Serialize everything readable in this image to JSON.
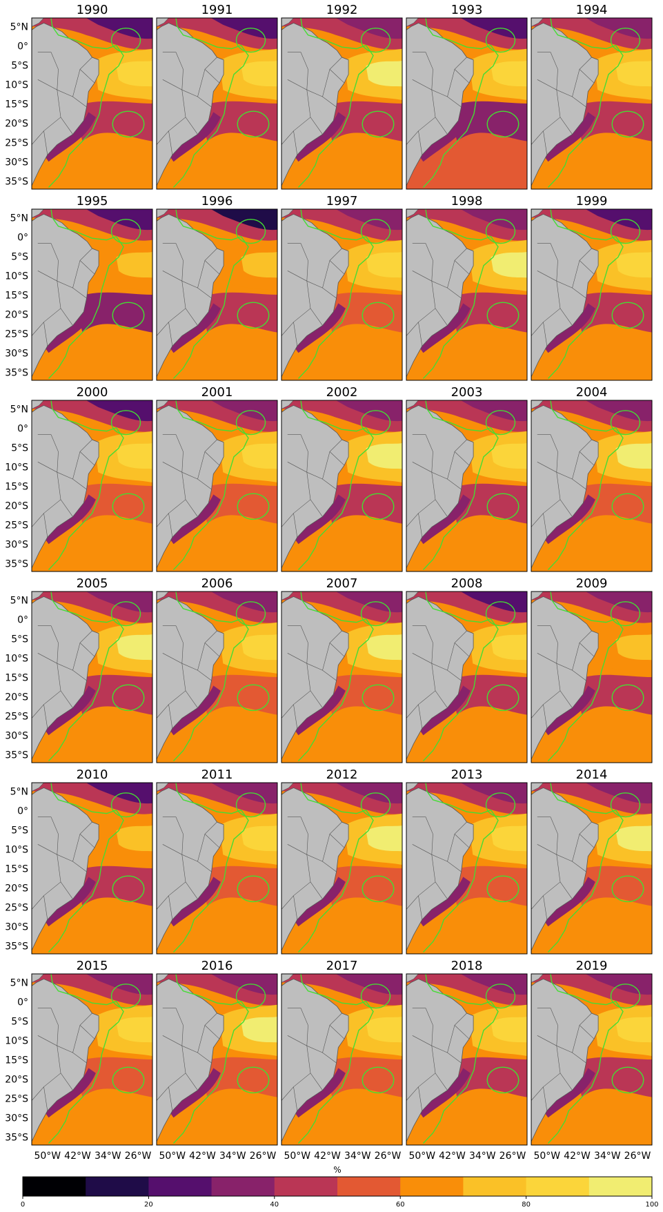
{
  "figure": {
    "panels": [
      {
        "title": "1990"
      },
      {
        "title": "1991"
      },
      {
        "title": "1992"
      },
      {
        "title": "1993"
      },
      {
        "title": "1994"
      },
      {
        "title": "1995"
      },
      {
        "title": "1996"
      },
      {
        "title": "1997"
      },
      {
        "title": "1998"
      },
      {
        "title": "1999"
      },
      {
        "title": "2000"
      },
      {
        "title": "2001"
      },
      {
        "title": "2002"
      },
      {
        "title": "2003"
      },
      {
        "title": "2004"
      },
      {
        "title": "2005"
      },
      {
        "title": "2006"
      },
      {
        "title": "2007"
      },
      {
        "title": "2008"
      },
      {
        "title": "2009"
      },
      {
        "title": "2010"
      },
      {
        "title": "2011"
      },
      {
        "title": "2012"
      },
      {
        "title": "2013"
      },
      {
        "title": "2014"
      },
      {
        "title": "2015"
      },
      {
        "title": "2016"
      },
      {
        "title": "2017"
      },
      {
        "title": "2018"
      },
      {
        "title": "2019"
      }
    ],
    "lat_labels": [
      "5°N",
      "0°",
      "5°S",
      "10°S",
      "15°S",
      "20°S",
      "25°S",
      "30°S",
      "35°S"
    ],
    "lon_labels": [
      "50°W",
      "42°W",
      "34°W",
      "26°W"
    ],
    "colorbar": {
      "label": "%",
      "ticks": [
        "0",
        "20",
        "40",
        "60",
        "80",
        "100"
      ],
      "colors": [
        "#000004",
        "#1f0c48",
        "#550f6d",
        "#88226a",
        "#ba3655",
        "#e35933",
        "#f98e09",
        "#fac127",
        "#fbd53a",
        "#f1ed71"
      ]
    },
    "colors": {
      "land": "#bebebe",
      "outline": "#44dd33",
      "border": "#555555"
    }
  }
}
